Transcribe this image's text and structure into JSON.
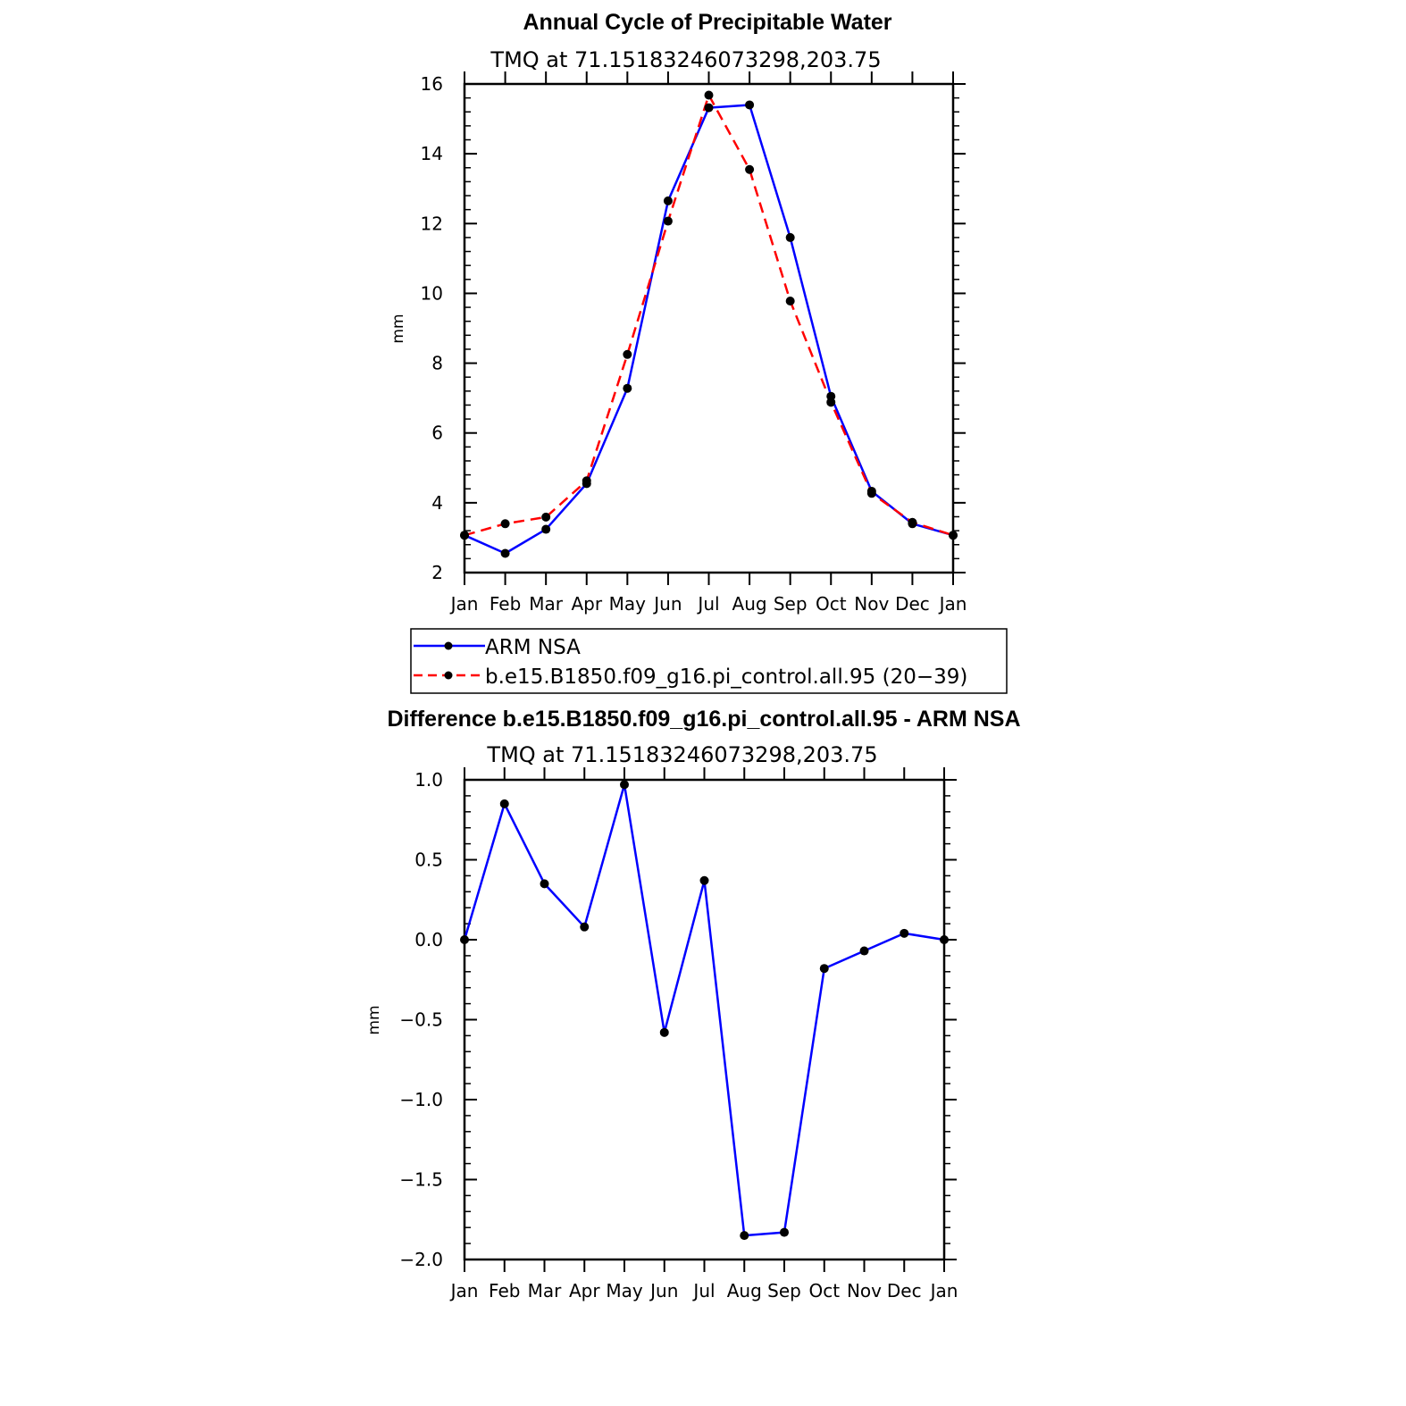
{
  "colors": {
    "obs": "#0000ff",
    "model": "#ff0000",
    "marker": "#000000"
  },
  "chart_data": [
    {
      "type": "line",
      "title": "Annual Cycle of Precipitable Water",
      "subtitle": "TMQ at 71.15183246073298,203.75",
      "xlabel": "",
      "ylabel": "mm",
      "categories": [
        "Jan",
        "Feb",
        "Mar",
        "Apr",
        "May",
        "Jun",
        "Jul",
        "Aug",
        "Sep",
        "Oct",
        "Nov",
        "Dec",
        "Jan"
      ],
      "ylim": [
        2,
        16
      ],
      "yticks": [
        2,
        4,
        6,
        8,
        10,
        12,
        14,
        16
      ],
      "ytick_labels": [
        "2",
        "4",
        "6",
        "8",
        "10",
        "12",
        "14",
        "16"
      ],
      "series": [
        {
          "name": "ARM NSA",
          "style": "solid",
          "color": "#0000ff",
          "values": [
            3.07,
            2.55,
            3.24,
            4.55,
            7.28,
            12.65,
            15.32,
            15.4,
            11.6,
            7.05,
            4.33,
            3.4,
            3.07
          ]
        },
        {
          "name": "b.e15.B1850.f09_g16.pi_control.all.95 (20−39)",
          "style": "dashed",
          "color": "#ff0000",
          "values": [
            3.07,
            3.4,
            3.59,
            4.63,
            8.25,
            12.07,
            15.68,
            13.55,
            9.78,
            6.88,
            4.27,
            3.44,
            3.07
          ]
        }
      ],
      "legend": {
        "entries": [
          "ARM NSA",
          "b.e15.B1850.f09_g16.pi_control.all.95 (20−39)"
        ]
      }
    },
    {
      "type": "line",
      "title": "Difference b.e15.B1850.f09_g16.pi_control.all.95 - ARM NSA",
      "subtitle": "TMQ at 71.15183246073298,203.75",
      "xlabel": "",
      "ylabel": "mm",
      "categories": [
        "Jan",
        "Feb",
        "Mar",
        "Apr",
        "May",
        "Jun",
        "Jul",
        "Aug",
        "Sep",
        "Oct",
        "Nov",
        "Dec",
        "Jan"
      ],
      "ylim": [
        -2.0,
        1.0
      ],
      "yticks": [
        -2.0,
        -1.5,
        -1.0,
        -0.5,
        0.0,
        0.5,
        1.0
      ],
      "ytick_labels": [
        "−2.0",
        "−1.5",
        "−1.0",
        "−0.5",
        "0.0",
        "0.5",
        "1.0"
      ],
      "series": [
        {
          "name": "Difference",
          "style": "solid",
          "color": "#0000ff",
          "values": [
            0.0,
            0.85,
            0.35,
            0.08,
            0.97,
            -0.58,
            0.37,
            -1.85,
            -1.83,
            -0.18,
            -0.07,
            0.04,
            0.0
          ]
        }
      ]
    }
  ]
}
